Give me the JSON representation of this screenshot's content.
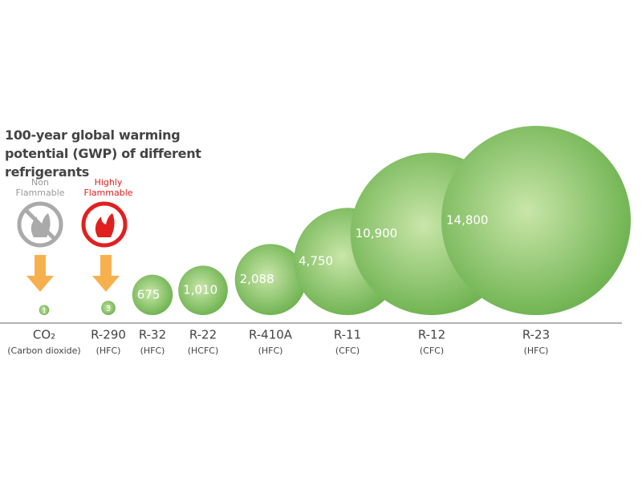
{
  "chart_data": {
    "type": "bubble",
    "title": "100-year global warming potential (GWP) of different refrigerants",
    "categories": [
      "CO₂",
      "R-290",
      "R-32",
      "R-22",
      "R-410A",
      "R-11",
      "R-12",
      "R-23"
    ],
    "sublabels": [
      "(Carbon dioxide)",
      "(HFC)",
      "(HFC)",
      "(HCFC)",
      "(HFC)",
      "(CFC)",
      "(CFC)",
      "(HFC)"
    ],
    "values": [
      1,
      3,
      675,
      1010,
      2088,
      4750,
      10900,
      14800
    ],
    "value_labels": [
      "1",
      "3",
      "675",
      "1,010",
      "2,088",
      "4,750",
      "10,900",
      "14,800"
    ],
    "color": "#6ab04c",
    "annotations": [
      "Non Flammable",
      "Highly Flammable"
    ]
  }
}
